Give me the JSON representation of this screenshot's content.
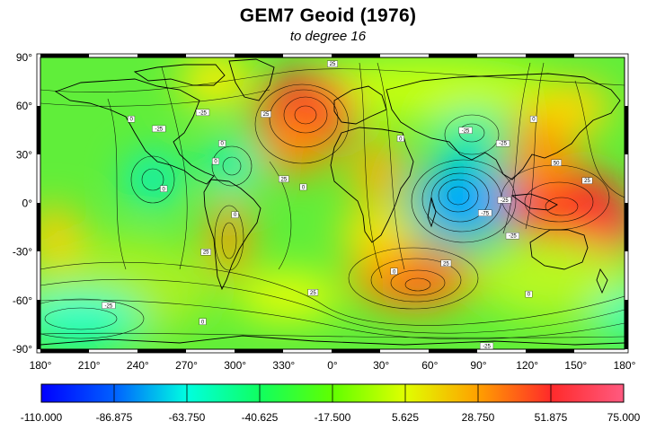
{
  "title": "GEM7 Geoid (1976)",
  "subtitle": "to degree 16",
  "map": {
    "projection": "equirectangular",
    "lon_range": [
      -180,
      180
    ],
    "lat_range": [
      -90,
      90
    ],
    "lat_ticks": [
      "90°",
      "60°",
      "30°",
      "0°",
      "-30°",
      "-60°",
      "-90°"
    ],
    "lon_ticks": [
      "180°",
      "210°",
      "240°",
      "270°",
      "300°",
      "330°",
      "0°",
      "30°",
      "60°",
      "90°",
      "120°",
      "150°",
      "180°"
    ],
    "contour_labels": [
      {
        "text": "0",
        "lon": -124,
        "lat": 52
      },
      {
        "text": "-25",
        "lon": -107,
        "lat": 46
      },
      {
        "text": "-25",
        "lon": -80,
        "lat": 56
      },
      {
        "text": "25",
        "lon": -41,
        "lat": 55
      },
      {
        "text": "0",
        "lon": -68,
        "lat": 37
      },
      {
        "text": "0",
        "lon": -72,
        "lat": 26
      },
      {
        "text": "0",
        "lon": -104,
        "lat": 9
      },
      {
        "text": "25",
        "lon": -30,
        "lat": 15
      },
      {
        "text": "0",
        "lon": -18,
        "lat": 10
      },
      {
        "text": "0",
        "lon": -60,
        "lat": -7
      },
      {
        "text": "25",
        "lon": -78,
        "lat": -30
      },
      {
        "text": "25",
        "lon": -12,
        "lat": -55
      },
      {
        "text": "25",
        "lon": 0,
        "lat": 86
      },
      {
        "text": "0",
        "lon": 42,
        "lat": 40
      },
      {
        "text": "-25",
        "lon": 82,
        "lat": 45
      },
      {
        "text": "-25",
        "lon": 105,
        "lat": 37
      },
      {
        "text": "0",
        "lon": 124,
        "lat": 52
      },
      {
        "text": "50",
        "lon": 138,
        "lat": 25
      },
      {
        "text": "25",
        "lon": 157,
        "lat": 14
      },
      {
        "text": "-25",
        "lon": 106,
        "lat": 2
      },
      {
        "text": "-75",
        "lon": 94,
        "lat": -6
      },
      {
        "text": "-25",
        "lon": 111,
        "lat": -20
      },
      {
        "text": "25",
        "lon": 70,
        "lat": -37
      },
      {
        "text": "0",
        "lon": 38,
        "lat": -42
      },
      {
        "text": "0",
        "lon": 121,
        "lat": -56
      },
      {
        "text": "-25",
        "lon": -138,
        "lat": -63
      },
      {
        "text": "0",
        "lon": -80,
        "lat": -73
      },
      {
        "text": "-25",
        "lon": 95,
        "lat": -88
      }
    ]
  },
  "colorbar": {
    "min": -110.0,
    "max": 75.0,
    "tick_values": [
      -110.0,
      -86.875,
      -63.75,
      -40.625,
      -17.5,
      5.625,
      28.75,
      51.875,
      75.0
    ],
    "tick_labels": [
      "-110.000",
      "-86.875",
      "-63.750",
      "-40.625",
      "-17.500",
      "5.625",
      "28.750",
      "51.875",
      "75.000"
    ],
    "colors": [
      "#0000ff",
      "#00aaff",
      "#00ffd0",
      "#30ff30",
      "#d8ff00",
      "#ffa000",
      "#ff3333",
      "#ff4f80"
    ]
  }
}
